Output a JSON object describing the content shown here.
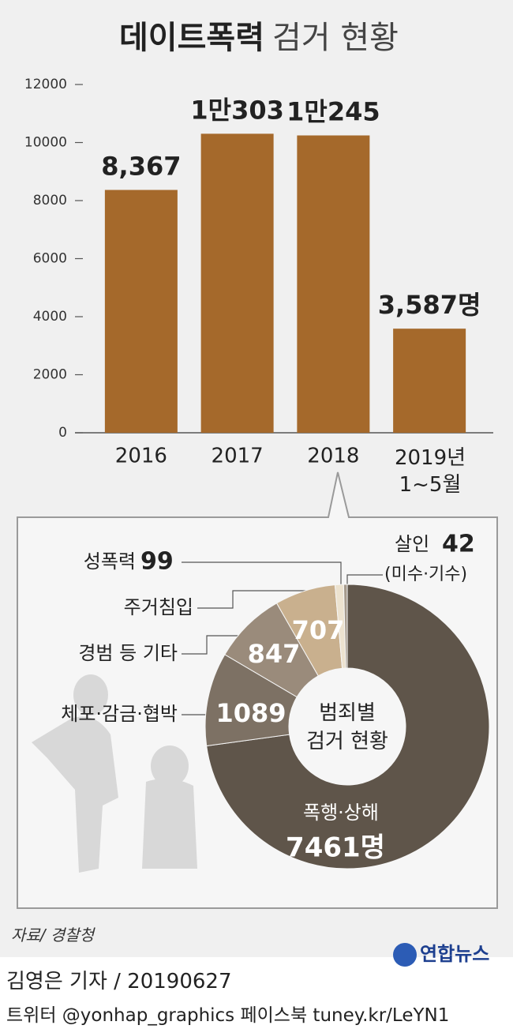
{
  "chart_data": [
    {
      "type": "bar",
      "title": "데이트폭력",
      "title_suffix": "검거 현황",
      "categories": [
        "2016",
        "2017",
        "2018",
        "2019년\n1~5월"
      ],
      "values": [
        8367,
        10303,
        10245,
        3587
      ],
      "value_labels": [
        "8,367",
        "1만303",
        "1만245",
        "3,587명"
      ],
      "color": "#a5692b",
      "ylim": [
        0,
        12000
      ],
      "yticks": [
        0,
        2000,
        4000,
        6000,
        8000,
        10000,
        12000
      ]
    },
    {
      "type": "donut",
      "center_label": "범죄별\n검거 현황",
      "categories": [
        "폭행·상해",
        "체포·감금·협박",
        "경범 등 기타",
        "주거침입",
        "성폭력",
        "살인"
      ],
      "values": [
        7461,
        1089,
        847,
        707,
        99,
        42
      ],
      "value_labels": [
        "7461명",
        "1089",
        "847",
        "707",
        "99",
        "42"
      ],
      "colors": [
        "#5f554a",
        "#7d7164",
        "#9a8b7b",
        "#c9b08e",
        "#ece2cf",
        "#a59a8c"
      ],
      "annotation": "(미수·기수)"
    }
  ],
  "footer": {
    "source": "자료/ 경찰청",
    "logo": "연합뉴스",
    "byline": "김영은 기자 / 20190627",
    "social": "트위터 @yonhap_graphics  페이스북 tuney.kr/LeYN1"
  }
}
